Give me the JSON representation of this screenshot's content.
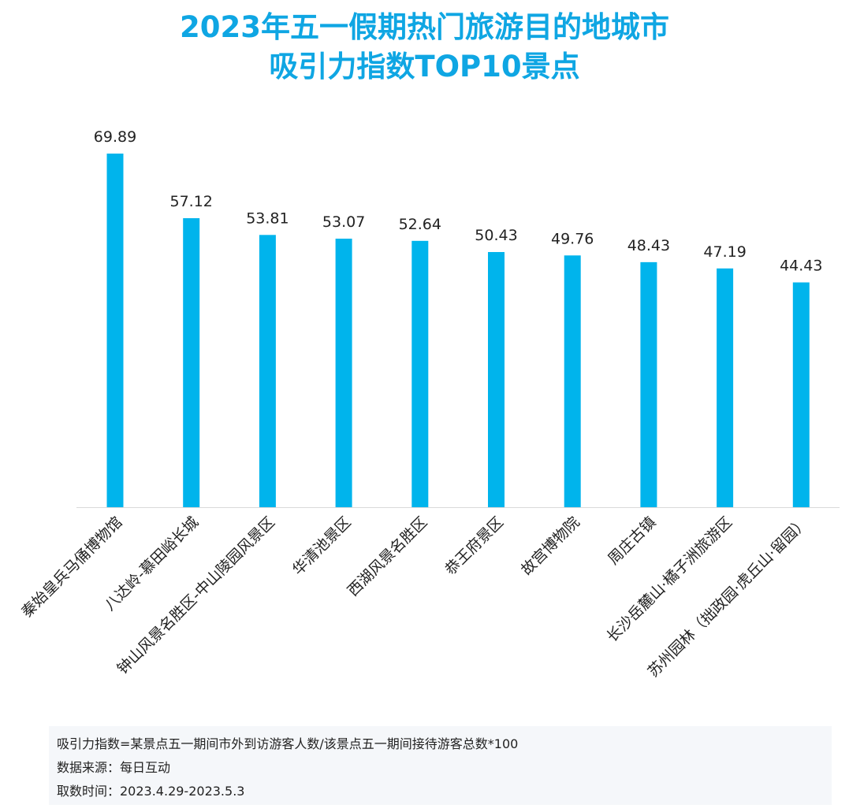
{
  "chart_data": {
    "type": "bar",
    "title": "2023年五一假期热门旅游目的地城市",
    "subtitle": "吸引力指数TOP10景点",
    "categories": [
      "秦始皇兵马俑博物馆",
      "八达岭-慕田峪长城",
      "钟山风景名胜区-中山陵园风景区",
      "华清池景区",
      "西湖风景名胜区",
      "恭王府景区",
      "故宫博物院",
      "周庄古镇",
      "长沙岳麓山·橘子洲旅游区",
      "苏州园林（拙政园·虎丘山·留园）"
    ],
    "values": [
      69.89,
      57.12,
      53.81,
      53.07,
      52.64,
      50.43,
      49.76,
      48.43,
      47.19,
      44.43
    ],
    "labels": [
      "69.89",
      "57.12",
      "53.81",
      "53.07",
      "52.64",
      "50.43",
      "49.76",
      "48.43",
      "47.19",
      "44.43"
    ],
    "ylim": [
      0,
      70
    ],
    "color": "#00b4ec",
    "grid": false
  },
  "footnote": {
    "line1": "吸引力指数=某景点五一期间市外到访游客人数/该景点五一期间接待游客总数*100",
    "line2": "数据来源：每日互动",
    "line3": "取数时间：2023.4.29-2023.5.3"
  }
}
